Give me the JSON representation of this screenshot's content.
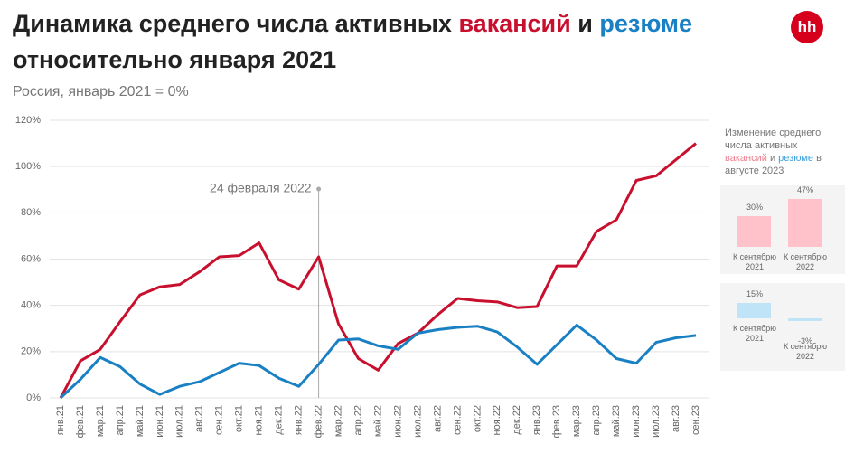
{
  "chart_data": {
    "type": "line",
    "title": {
      "start": "Динамика среднего числа активных",
      "conjunction": "и",
      "end": "относительно января 2021"
    },
    "subtitle": "Россия, январь 2021 = 0%",
    "logo": "hh",
    "categories": [
      "янв.21",
      "фев.21",
      "мар.21",
      "апр.21",
      "май.21",
      "июн.21",
      "июл.21",
      "авг.21",
      "сен.21",
      "окт.21",
      "ноя.21",
      "дек.21",
      "янв.22",
      "фев.22",
      "мар.22",
      "апр.22",
      "май.22",
      "июн.22",
      "июл.22",
      "авг.22",
      "сен.22",
      "окт.22",
      "ноя.22",
      "дек.22",
      "янв.23",
      "фев.23",
      "мар.23",
      "апр.23",
      "май.23",
      "июн.23",
      "июл.23",
      "авг.23",
      "сен.23"
    ],
    "series": [
      {
        "name": "вакансий",
        "color": "#c8102e",
        "values": [
          0,
          16,
          21,
          33,
          44.5,
          48,
          49,
          54.5,
          61,
          61.5,
          67,
          51,
          47,
          61,
          32,
          17,
          12,
          23.5,
          28,
          36,
          43,
          42,
          41.5,
          39,
          39.5,
          57,
          57,
          72,
          77,
          94,
          96,
          103,
          110
        ]
      },
      {
        "name": "резюме",
        "color": "#1a80c4",
        "values": [
          0,
          8,
          17.5,
          13.5,
          6,
          1.5,
          5,
          7,
          11,
          15,
          14,
          8.5,
          5,
          14.5,
          25,
          25.5,
          22.5,
          21,
          28,
          29.5,
          30.5,
          31,
          28.5,
          22,
          14.5,
          23,
          31.5,
          25,
          17,
          15,
          24,
          26,
          27
        ]
      }
    ],
    "ylim": [
      0,
      120
    ],
    "yticks": [
      {
        "value": 0,
        "label": "0%"
      },
      {
        "value": 20,
        "label": "20%"
      },
      {
        "value": 40,
        "label": "40%"
      },
      {
        "value": 60,
        "label": "60%"
      },
      {
        "value": 80,
        "label": "80%"
      },
      {
        "value": 100,
        "label": "100%"
      },
      {
        "value": 120,
        "label": "120%"
      }
    ],
    "grid": true,
    "annotation": {
      "text": "24 февраля 2022",
      "category": "фев.22"
    },
    "side_panel": {
      "title_start": "Изменение среднего числа активных",
      "title_end": "в августе 2023",
      "charts": [
        {
          "type": "bar",
          "color": "#ffc2cb",
          "categories": [
            "К сентябрю 2021",
            "К сентябрю 2022"
          ],
          "values": [
            30,
            47
          ],
          "value_labels": [
            "30%",
            "47%"
          ]
        },
        {
          "type": "bar",
          "color": "#bfe3f7",
          "categories": [
            "К сентябрю 2021",
            "К сентябрю 2022"
          ],
          "values": [
            15,
            -3
          ],
          "value_labels": [
            "15%",
            "-3%"
          ]
        }
      ]
    }
  }
}
